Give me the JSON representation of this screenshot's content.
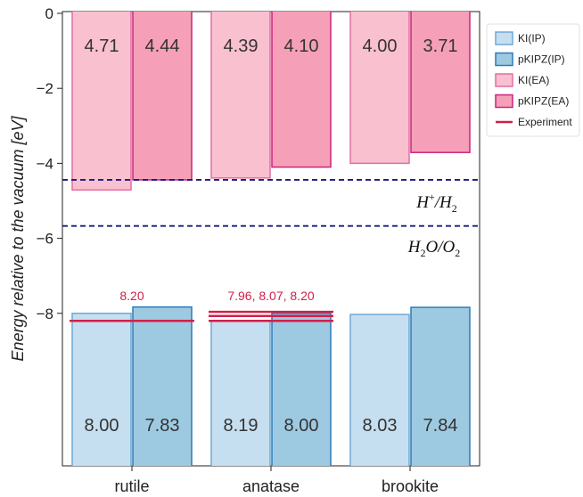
{
  "chart_data": {
    "type": "bar",
    "title": "",
    "xlabel": "",
    "ylabel": "Energy relative to the vacuum [eV]",
    "ylim": [
      -12,
      0
    ],
    "yticks": [
      0,
      -2,
      -4,
      -6,
      -8
    ],
    "ytick_labels": [
      "0",
      "−2",
      "−4",
      "−6",
      "−8"
    ],
    "categories": [
      "rutile",
      "anatase",
      "brookite"
    ],
    "series": [
      {
        "name": "KI(IP)",
        "values": [
          -8.0,
          -8.19,
          -8.03
        ],
        "labels": [
          "8.00",
          "8.19",
          "8.03"
        ],
        "fill": "#c6dff0",
        "stroke": "#6fa8d6",
        "group": "IP",
        "slot": 0
      },
      {
        "name": "pKIPZ(IP)",
        "values": [
          -7.83,
          -8.0,
          -7.84
        ],
        "labels": [
          "7.83",
          "8.00",
          "7.84"
        ],
        "fill": "#9ecae1",
        "stroke": "#2b7bba",
        "group": "IP",
        "slot": 1
      },
      {
        "name": "KI(EA)",
        "values": [
          -4.71,
          -4.39,
          -4.0
        ],
        "labels": [
          "4.71",
          "4.39",
          "4.00"
        ],
        "fill": "#f9c0d0",
        "stroke": "#e26fa0",
        "group": "EA",
        "slot": 0
      },
      {
        "name": "pKIPZ(EA)",
        "values": [
          -4.44,
          -4.1,
          -3.71
        ],
        "labels": [
          "4.44",
          "4.10",
          "3.71"
        ],
        "fill": "#f5a0b8",
        "stroke": "#c9247a",
        "group": "EA",
        "slot": 1
      }
    ],
    "experiment": {
      "name": "Experiment",
      "color": "#d0204a",
      "values": [
        [
          -8.2
        ],
        [
          -7.96,
          -8.07,
          -8.2
        ],
        []
      ],
      "labels": [
        "8.20",
        "7.96, 8.07, 8.20",
        ""
      ]
    },
    "reference_lines": [
      {
        "label": "H+/H2",
        "value": -4.44,
        "color": "#1a1a80"
      },
      {
        "label": "H2O/O2",
        "value": -5.67,
        "color": "#1a1a80"
      }
    ],
    "legend": {
      "position": "top-right",
      "entries": [
        "KI(IP)",
        "pKIPZ(IP)",
        "KI(EA)",
        "pKIPZ(EA)",
        "Experiment"
      ]
    }
  }
}
